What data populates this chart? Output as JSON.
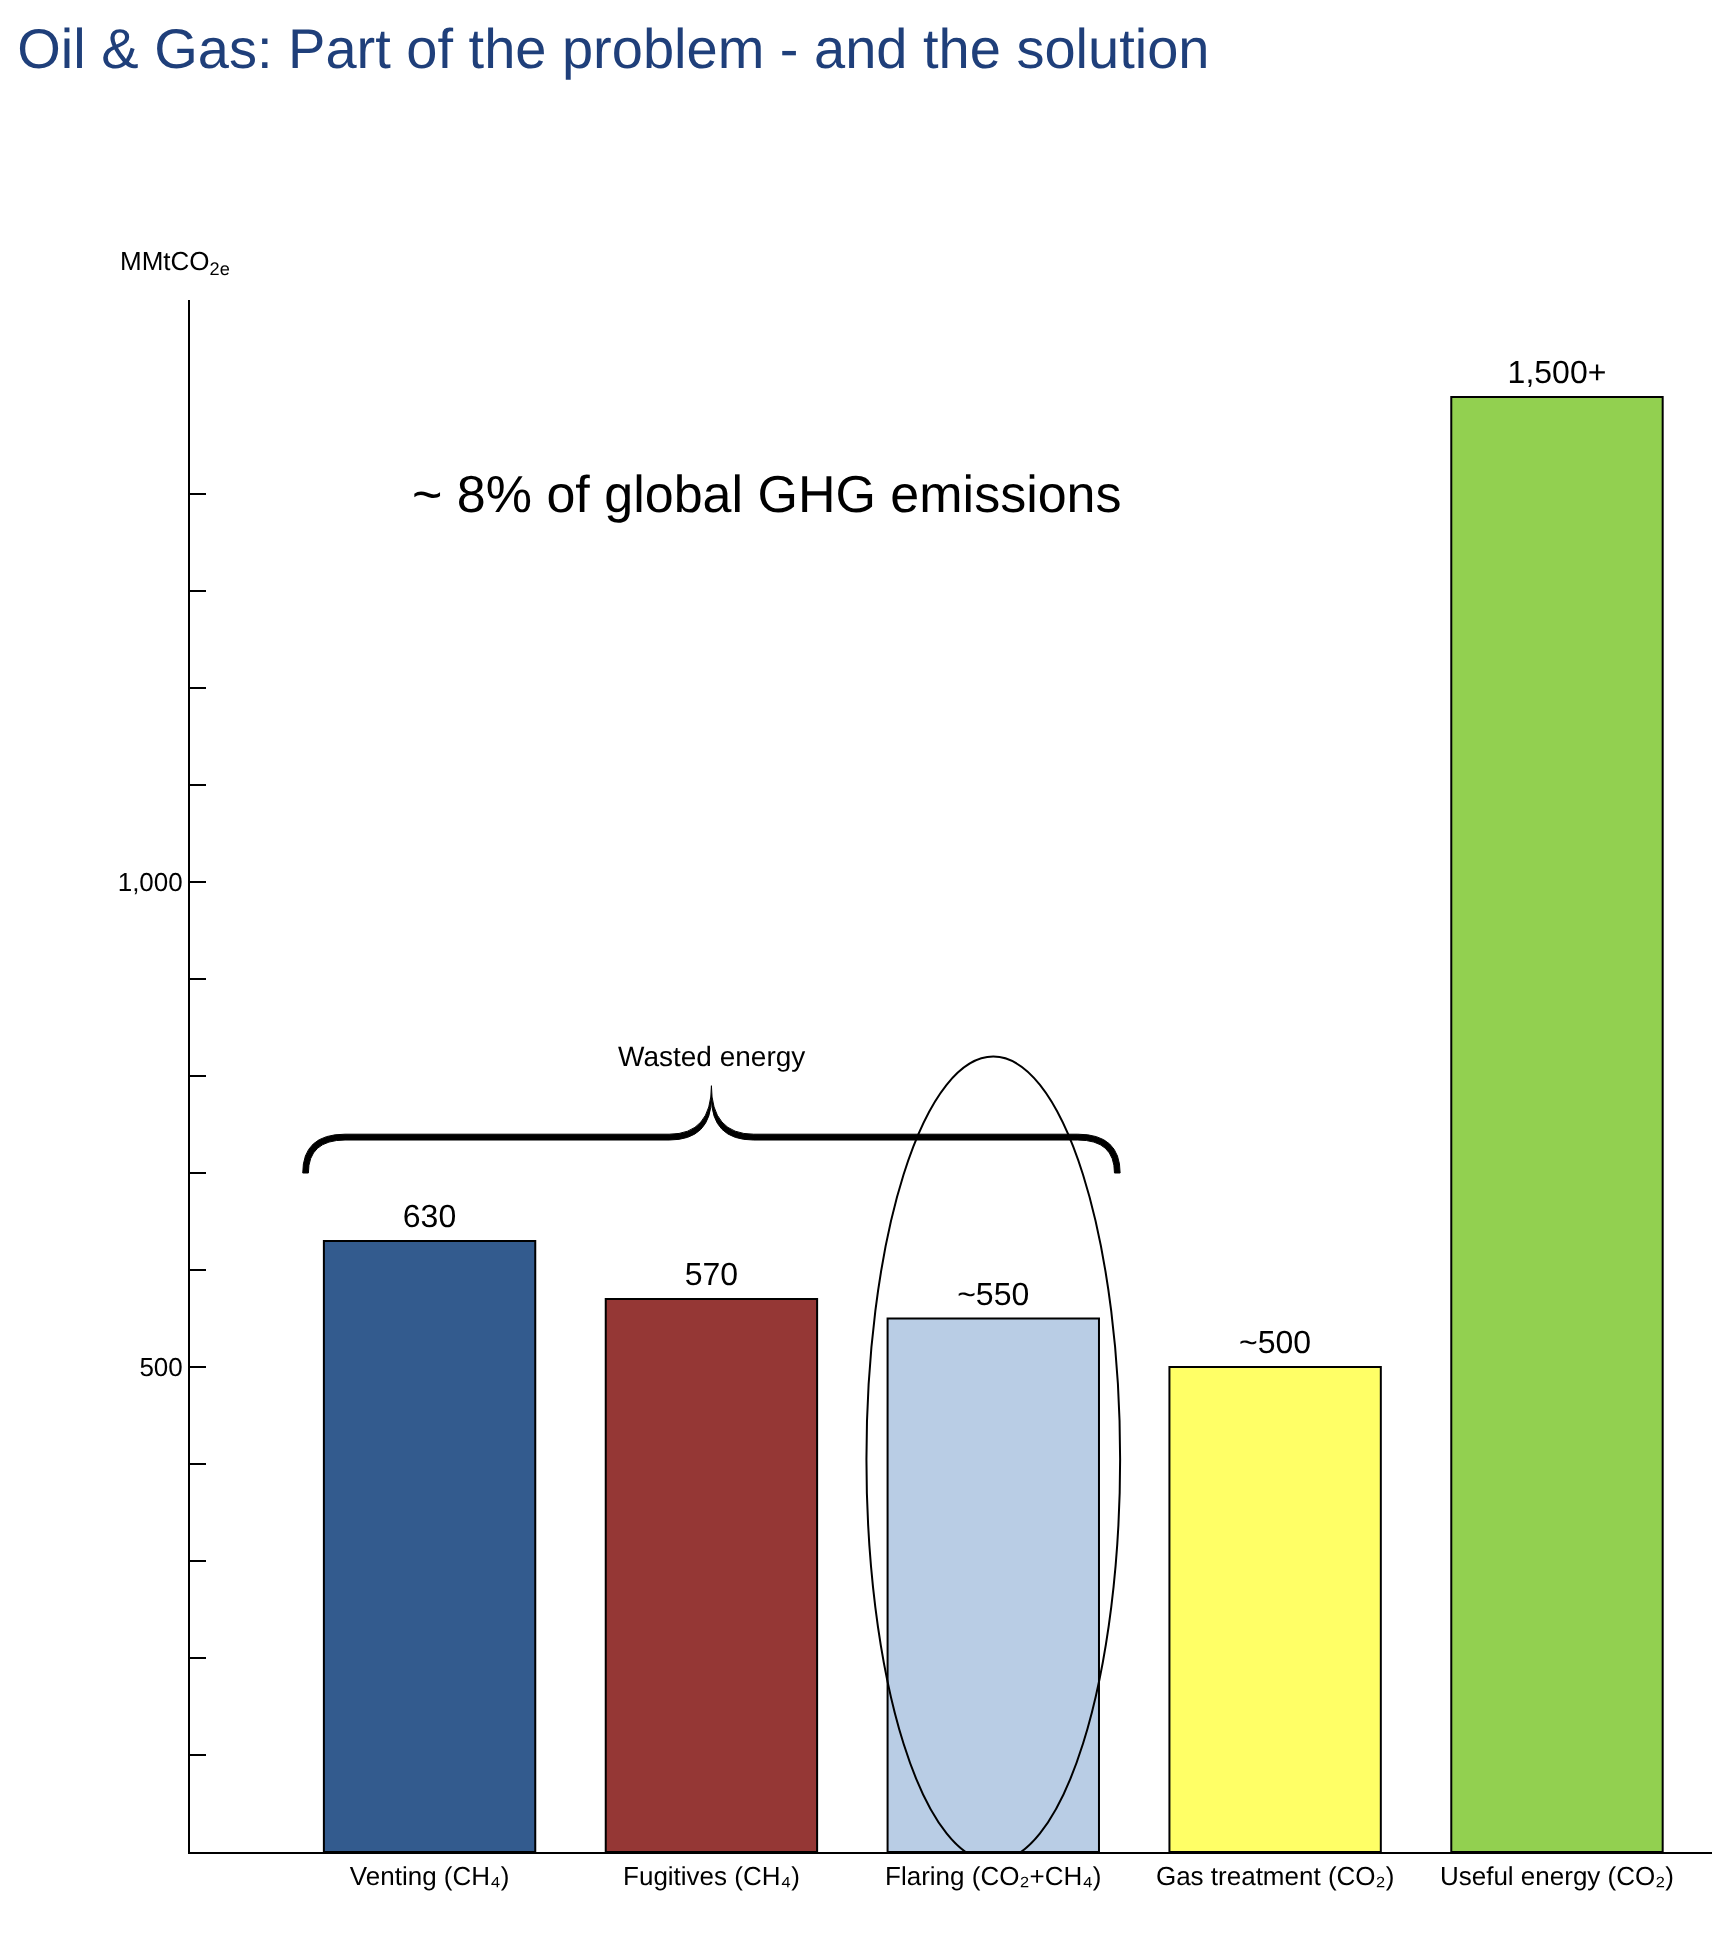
{
  "chart_data": {
    "type": "bar",
    "title": "Oil & Gas: Part of the problem - and the solution",
    "ylabel": "MMtCO$_{2e}$",
    "categories": [
      "Venting (CH₄)",
      "Fugitives (CH₄)",
      "Flaring (CO₂+CH₄)",
      "Gas treatment (CO₂)",
      "Useful energy (CO₂)"
    ],
    "values": [
      630,
      570,
      550,
      500,
      1500
    ],
    "colors": [
      "#335b8e",
      "#953735",
      "#b9cde5",
      "#ffff66",
      "#92d050"
    ],
    "value_labels": [
      "630",
      "570",
      "~550",
      "~500",
      "1,500+"
    ],
    "annotations": [
      "~ 8% of global GHG emissions",
      "Wasted energy"
    ],
    "ylim": [
      0,
      1600
    ],
    "yticks": [
      {
        "value": 100,
        "label": null
      },
      {
        "value": 200,
        "label": null
      },
      {
        "value": 300,
        "label": null
      },
      {
        "value": 400,
        "label": null
      },
      500,
      {
        "value": 600,
        "label": null
      },
      {
        "value": 700,
        "label": null
      },
      {
        "value": 800,
        "label": null
      },
      {
        "value": 900,
        "label": null
      },
      {
        "value": 1000,
        "label": "1,000"
      },
      {
        "value": 1100,
        "label": null
      },
      {
        "value": 1200,
        "label": null
      },
      {
        "value": 1300,
        "label": null
      },
      {
        "value": 1400,
        "label": null
      }
    ]
  }
}
